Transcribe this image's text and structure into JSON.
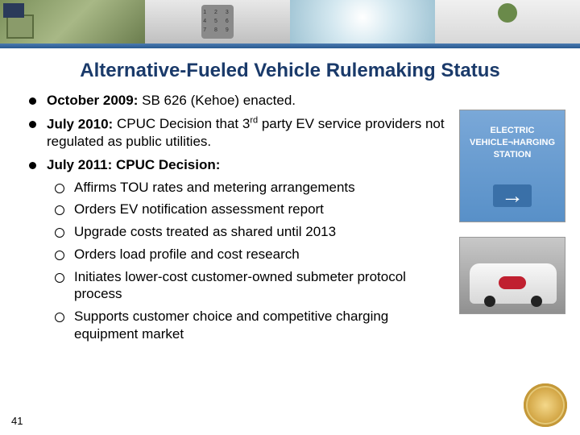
{
  "title": "Alternative-Fueled Vehicle Rulemaking Status",
  "page_number": "41",
  "bullets": [
    {
      "lead": "October 2009:",
      "rest": " SB 626 (Kehoe) enacted."
    },
    {
      "lead": "July 2010:",
      "rest_html": " CPUC Decision that 3<span class='sup'>rd</span> party EV service providers not regulated as public utilities."
    },
    {
      "lead": "July 2011: CPUC Decision:",
      "rest": ""
    }
  ],
  "sub_bullets": [
    "Affirms TOU rates and metering arrangements",
    "Orders EV notification assessment report",
    "Upgrade costs treated as shared until 2013",
    "Orders load profile and cost research",
    "Initiates lower-cost customer-owned submeter protocol process",
    "Supports customer choice and competitive charging equipment market"
  ],
  "colors": {
    "title_color": "#1a3a6a",
    "text_color": "#000000",
    "bg_color": "#ffffff"
  },
  "header_images": [
    "house-solar",
    "phone-keypad",
    "water-drop",
    "plant-industrial"
  ],
  "side_images": {
    "sign_text": "ELECTRIC VEHICLE CHARGING STATION",
    "car_desc": "white compact EV with red badge"
  },
  "typography": {
    "title_fontsize": 24,
    "body_fontsize": 17,
    "font_family": "Arial"
  }
}
